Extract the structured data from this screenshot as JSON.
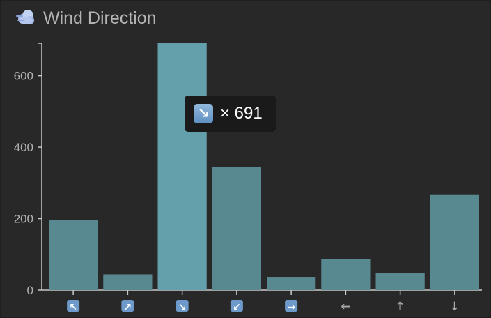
{
  "header": {
    "title": "Wind Direction",
    "icon": "wind-cloud-icon"
  },
  "tooltip": {
    "category": "↘",
    "text": "× 691"
  },
  "colors": {
    "bar": "#588890",
    "bar_highlight": "#64a0ab",
    "axis": "#c8c8c8",
    "tick_text": "#b4b4b4",
    "background": "#282828"
  },
  "chart_data": {
    "type": "bar",
    "categories": [
      "↖",
      "↗",
      "↘",
      "↙",
      "→",
      "←",
      "↑",
      "↓"
    ],
    "values": [
      197,
      44,
      691,
      344,
      37,
      86,
      47,
      268
    ],
    "highlighted_index": 2,
    "title": "Wind Direction",
    "xlabel": "",
    "ylabel": "",
    "yticks": [
      0,
      200,
      400,
      600
    ],
    "ylim": [
      0,
      691
    ],
    "grid": false,
    "legend": "none"
  }
}
